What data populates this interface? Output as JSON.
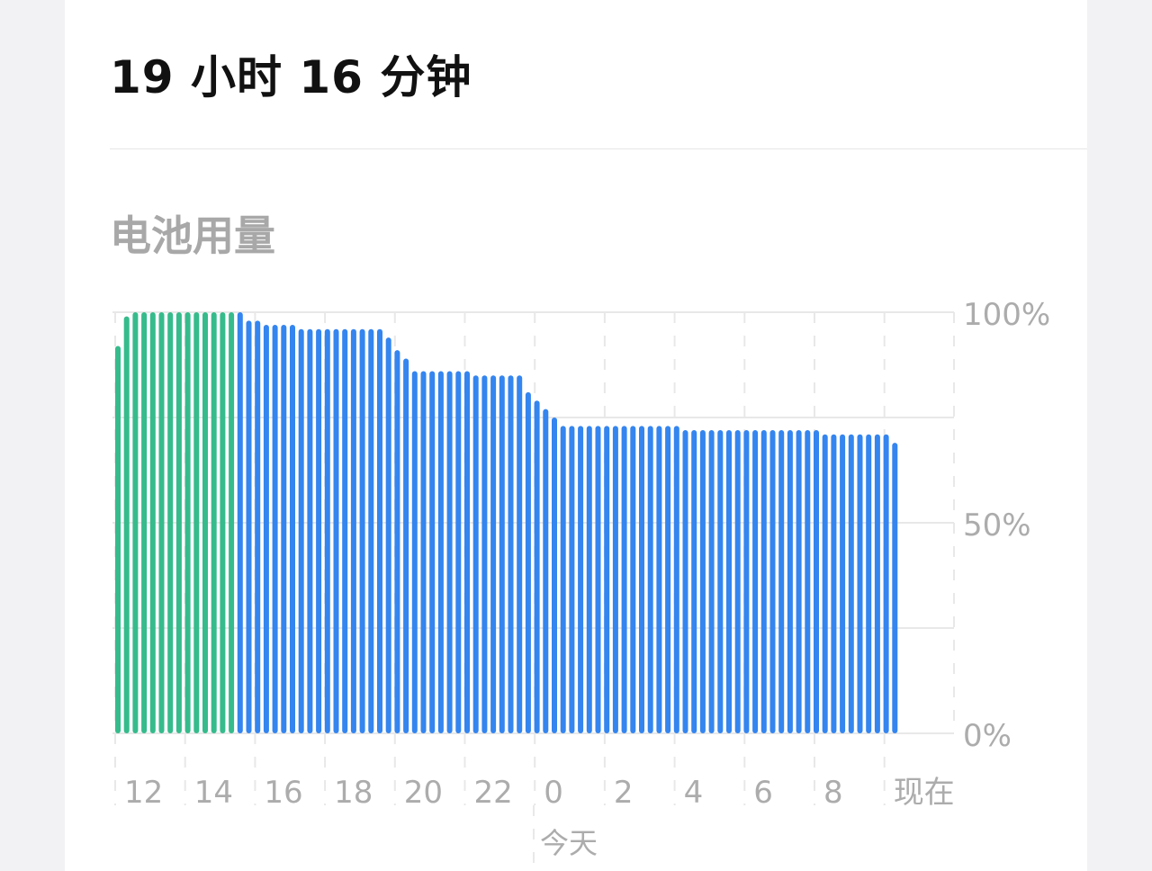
{
  "header": {
    "title": "19 小时 16 分钟"
  },
  "section": {
    "title": "电池用量"
  },
  "colors": {
    "charging": "#36bb8c",
    "discharging": "#3485ef",
    "grid": "#e8e8e8",
    "label": "#acacac",
    "background": "#f2f2f4"
  },
  "chart_data": {
    "type": "bar",
    "ylim": [
      0,
      100
    ],
    "y_ticks": [
      "0%",
      "50%",
      "100%"
    ],
    "x_ticks": [
      "12",
      "14",
      "16",
      "18",
      "20",
      "22",
      "0",
      "2",
      "4",
      "6",
      "8",
      "现在"
    ],
    "x_sublabel": "今天",
    "grid": true,
    "interval_minutes": 15,
    "values": [
      92,
      99,
      100,
      100,
      100,
      100,
      100,
      100,
      100,
      100,
      100,
      100,
      100,
      100,
      100,
      98,
      98,
      97,
      97,
      97,
      97,
      96,
      96,
      96,
      96,
      96,
      96,
      96,
      96,
      96,
      96,
      94,
      91,
      89,
      86,
      86,
      86,
      86,
      86,
      86,
      86,
      85,
      85,
      85,
      85,
      85,
      85,
      81,
      79,
      77,
      75,
      73,
      73,
      73,
      73,
      73,
      73,
      73,
      73,
      73,
      73,
      73,
      73,
      73,
      73,
      72,
      72,
      72,
      72,
      72,
      72,
      72,
      72,
      72,
      72,
      72,
      72,
      72,
      72,
      72,
      72,
      71,
      71,
      71,
      71,
      71,
      71,
      71,
      71,
      69
    ],
    "charging_count": 14
  }
}
